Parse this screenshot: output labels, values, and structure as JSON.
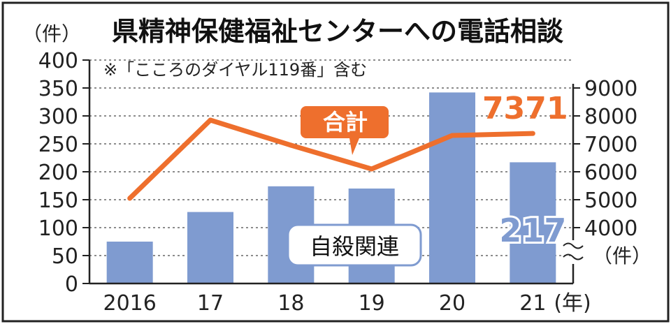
{
  "chart_data": {
    "type": "bar+line",
    "title": "県精神保健福祉センターへの電話相談",
    "note": "※「こころのダイヤル119番」含む",
    "categories": [
      "2016",
      "17",
      "18",
      "19",
      "20",
      "21"
    ],
    "x_unit": "(年)",
    "y_left": {
      "unit": "（件）",
      "range": [
        0,
        400
      ],
      "ticks": [
        "0",
        "50",
        "100",
        "150",
        "200",
        "250",
        "300",
        "350",
        "400"
      ]
    },
    "y_right": {
      "unit": "（件）",
      "range": [
        3500,
        9000
      ],
      "ticks": [
        "4000",
        "5000",
        "6000",
        "7000",
        "8000",
        "9000"
      ],
      "axis_break": true
    },
    "series": [
      {
        "name": "自殺関連",
        "type": "bar",
        "axis": "left",
        "color": "#7f9bd0",
        "values": [
          75,
          128,
          174,
          170,
          342,
          217
        ],
        "end_label": "217"
      },
      {
        "name": "合計",
        "type": "line",
        "axis": "right",
        "color": "#ee6f2d",
        "values": [
          5050,
          7850,
          6950,
          6100,
          7300,
          7371
        ],
        "end_label": "7371"
      }
    ],
    "grid": true
  }
}
